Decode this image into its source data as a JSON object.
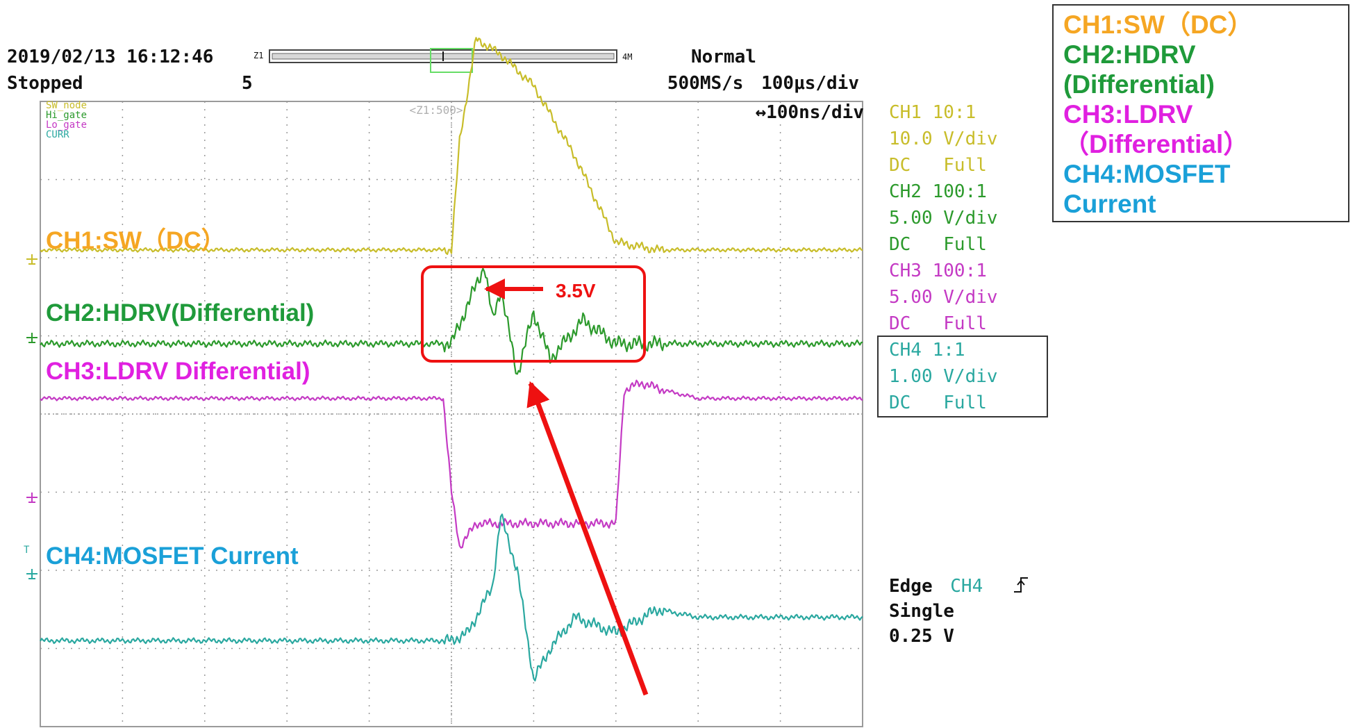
{
  "colors": {
    "ch1": "#c8bd2a",
    "ch2": "#2c9a2c",
    "ch3": "#c43ac4",
    "ch4": "#2aa8a0",
    "label_ch1": "#f5a623",
    "label_ch2": "#1f9a3a",
    "label_ch3": "#e020e0",
    "label_ch4": "#1aa0d8",
    "annotation": "#ee1111",
    "grid": "#999999"
  },
  "header": {
    "datetime": "2019/02/13 16:12:46",
    "zoom_marker": "Z1",
    "memory": "4M",
    "mode": "Normal",
    "state": "Stopped",
    "count": "5",
    "sample_rate": "500MS/s",
    "timebase": "100μs/div",
    "zoom_window": "<Z1:500>",
    "zoom_timebase": "↔100ns/div"
  },
  "trace_names": [
    "SW_node",
    "Hi_gate",
    "Lo_gate",
    "CURR"
  ],
  "channel_settings": [
    {
      "line1": "CH1 10:1",
      "line2": "10.0 V/div",
      "line3": "DC   Full"
    },
    {
      "line1": "CH2 100:1",
      "line2": "5.00 V/div",
      "line3": "DC   Full"
    },
    {
      "line1": "CH3 100:1",
      "line2": "5.00 V/div",
      "line3": "DC   Full"
    },
    {
      "line1": "CH4 1:1",
      "line2": "1.00 V/div",
      "line3": "DC   Full"
    }
  ],
  "trigger": {
    "source_prefix": "Edge",
    "source": "CH4",
    "mode": "Single",
    "level": "0.25 V"
  },
  "overlay_labels": {
    "ch1": "CH1:SW（DC）",
    "ch2": "CH2:HDRV(Differential)",
    "ch3": "CH3:LDRV Differential)",
    "ch4": "CH4:MOSFET Current"
  },
  "annotation": {
    "text": "3.5V"
  },
  "legend": {
    "line1": "CH1:SW（DC）",
    "line2": "CH2:HDRV",
    "line3": "(Differential)",
    "line4": "CH3:LDRV",
    "line5": "（Differential）",
    "line6": "CH4:MOSFET",
    "line7": "Current"
  },
  "chart_data": {
    "type": "line",
    "x_divisions": 10,
    "y_divisions": 8,
    "series": [
      {
        "name": "SW_node",
        "x": [
          0,
          1,
          2,
          3,
          4,
          5,
          5.1,
          5.3,
          5.6,
          6,
          6.5,
          7,
          7.5,
          8,
          9,
          10
        ],
        "y": [
          2.1,
          2.1,
          2.1,
          2.1,
          2.1,
          2.1,
          3.5,
          4.8,
          4.6,
          4.2,
          3.3,
          2.2,
          2.1,
          2.1,
          2.1,
          2.1
        ]
      },
      {
        "name": "Hi_gate",
        "x": [
          0,
          1,
          2,
          3,
          4,
          5,
          5.2,
          5.4,
          5.5,
          5.6,
          5.8,
          6,
          6.2,
          6.6,
          7,
          7.5,
          8,
          9,
          10
        ],
        "y": [
          0.9,
          0.9,
          0.9,
          0.9,
          0.9,
          0.9,
          1.4,
          1.9,
          1.2,
          1.6,
          0.5,
          1.3,
          0.7,
          1.2,
          0.9,
          0.9,
          0.9,
          0.9,
          0.9
        ]
      },
      {
        "name": "Lo_gate",
        "x": [
          0,
          1,
          2,
          3,
          4,
          4.9,
          5.0,
          5.1,
          5.3,
          5.6,
          6,
          6.5,
          7,
          7.1,
          7.3,
          7.6,
          8,
          9,
          10
        ],
        "y": [
          0.2,
          0.2,
          0.2,
          0.2,
          0.2,
          0.2,
          -1.0,
          -1.7,
          -1.4,
          -1.4,
          -1.4,
          -1.4,
          -1.4,
          0.3,
          0.4,
          0.3,
          0.2,
          0.2,
          0.2
        ]
      },
      {
        "name": "CURR",
        "x": [
          0,
          1,
          2,
          3,
          4,
          5,
          5.2,
          5.5,
          5.6,
          5.8,
          6,
          6.2,
          6.5,
          7,
          7.5,
          8,
          9,
          10
        ],
        "y": [
          -2.9,
          -2.9,
          -2.9,
          -2.9,
          -2.9,
          -2.9,
          -2.8,
          -2.2,
          -1.3,
          -2.0,
          -3.4,
          -3.0,
          -2.6,
          -2.8,
          -2.5,
          -2.6,
          -2.6,
          -2.6
        ]
      }
    ]
  }
}
